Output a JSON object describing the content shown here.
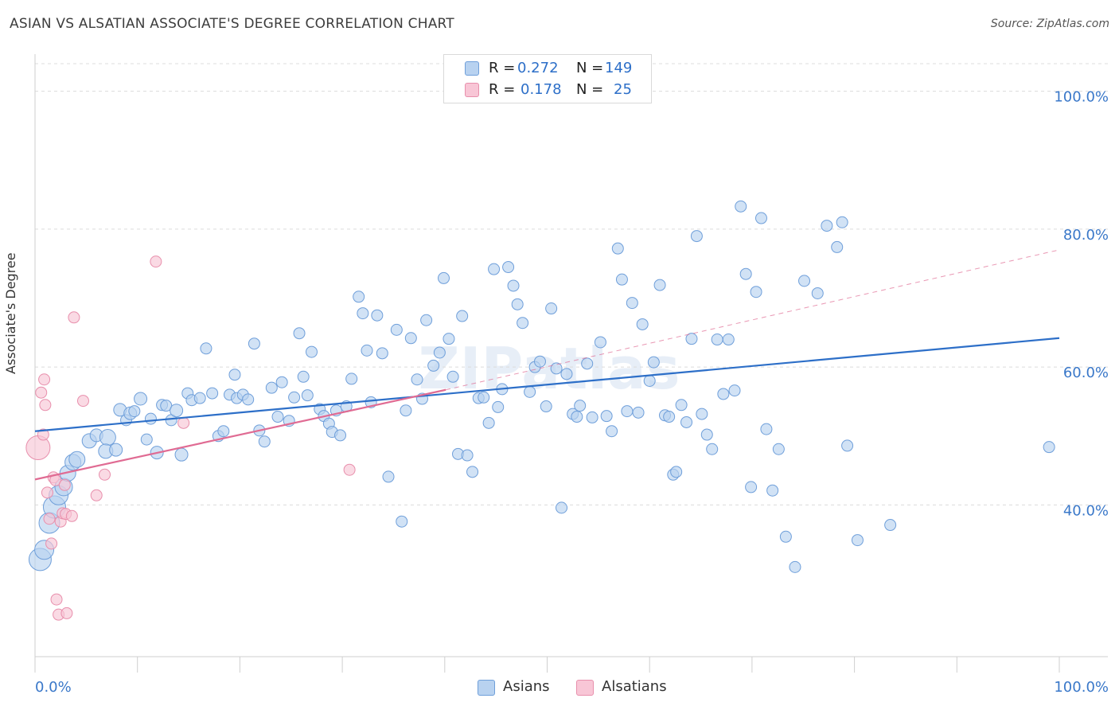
{
  "header": {
    "title": "ASIAN VS ALSATIAN ASSOCIATE'S DEGREE CORRELATION CHART",
    "source": "Source: ZipAtlas.com"
  },
  "stats": {
    "asians": {
      "r_label": "R =",
      "r_value": "0.272",
      "n_label": "N =",
      "n_value": "149"
    },
    "alsatians": {
      "r_label": "R =",
      "r_value": "0.178",
      "n_label": "N =",
      "n_value": "25"
    }
  },
  "colors": {
    "asians_fill": "#b8d2f0",
    "asians_stroke": "#6f9fda",
    "asians_line": "#2d6fc8",
    "alsatians_fill": "#f8c6d6",
    "alsatians_stroke": "#e88fac",
    "alsatians_line": "#e06b93",
    "axis_text": "#3a78c9",
    "grid": "#dcdcdc"
  },
  "chart_data": {
    "type": "scatter",
    "title": "ASIAN VS ALSATIAN ASSOCIATE'S DEGREE CORRELATION CHART",
    "xlabel": "",
    "ylabel": "Associate's Degree",
    "xlim": [
      0,
      100
    ],
    "ylim": [
      18,
      104
    ],
    "x_tick_labels": [
      "0.0%",
      "100.0%"
    ],
    "y_tick_labels": [
      {
        "value": 40,
        "label": "40.0%"
      },
      {
        "value": 60,
        "label": "60.0%"
      },
      {
        "value": 80,
        "label": "80.0%"
      },
      {
        "value": 100,
        "label": "100.0%"
      }
    ],
    "grid": true,
    "legend_position": "bottom-center",
    "watermark": "ZIPatlas",
    "series": [
      {
        "name": "Asians",
        "trend": {
          "x": [
            0,
            100
          ],
          "y": [
            50.7,
            64.2
          ]
        },
        "points": [
          [
            0.5,
            32.1,
            28
          ],
          [
            0.9,
            33.5,
            24
          ],
          [
            1.4,
            37.4,
            26
          ],
          [
            1.9,
            39.7,
            28
          ],
          [
            2.3,
            41.4,
            24
          ],
          [
            2.8,
            42.6,
            22
          ],
          [
            3.2,
            44.6,
            20
          ],
          [
            3.7,
            46.2,
            20
          ],
          [
            4.1,
            46.6,
            20
          ],
          [
            5.3,
            49.3,
            18
          ],
          [
            6.0,
            50.1,
            16
          ],
          [
            7.1,
            49.8,
            20
          ],
          [
            6.9,
            47.8,
            18
          ],
          [
            7.9,
            48.0,
            16
          ],
          [
            8.3,
            53.8,
            16
          ],
          [
            8.9,
            52.3,
            14
          ],
          [
            9.3,
            53.3,
            16
          ],
          [
            9.7,
            53.6,
            14
          ],
          [
            10.3,
            55.4,
            16
          ],
          [
            10.9,
            49.5,
            14
          ],
          [
            11.3,
            52.5,
            14
          ],
          [
            11.9,
            47.6,
            16
          ],
          [
            12.4,
            54.5,
            14
          ],
          [
            12.8,
            54.4,
            14
          ],
          [
            13.3,
            52.3,
            14
          ],
          [
            13.8,
            53.7,
            16
          ],
          [
            14.3,
            47.3,
            16
          ],
          [
            14.9,
            56.2,
            14
          ],
          [
            15.3,
            55.2,
            14
          ],
          [
            16.1,
            55.5,
            14
          ],
          [
            16.7,
            62.7,
            14
          ],
          [
            17.3,
            56.2,
            14
          ],
          [
            17.9,
            50.0,
            14
          ],
          [
            18.4,
            50.7,
            14
          ],
          [
            19.0,
            56.0,
            14
          ],
          [
            19.5,
            58.9,
            14
          ],
          [
            19.7,
            55.5,
            14
          ],
          [
            20.3,
            56.0,
            14
          ],
          [
            20.8,
            55.3,
            14
          ],
          [
            21.4,
            63.4,
            14
          ],
          [
            21.9,
            50.8,
            14
          ],
          [
            22.4,
            49.2,
            14
          ],
          [
            23.1,
            57.0,
            14
          ],
          [
            23.7,
            52.8,
            14
          ],
          [
            24.1,
            57.8,
            14
          ],
          [
            24.8,
            52.2,
            14
          ],
          [
            25.3,
            55.6,
            14
          ],
          [
            25.8,
            64.9,
            14
          ],
          [
            26.2,
            58.6,
            14
          ],
          [
            26.6,
            55.9,
            14
          ],
          [
            27.0,
            62.2,
            14
          ],
          [
            27.8,
            53.9,
            14
          ],
          [
            28.2,
            52.9,
            14
          ],
          [
            28.7,
            51.8,
            14
          ],
          [
            29.0,
            50.6,
            14
          ],
          [
            29.4,
            53.7,
            14
          ],
          [
            29.8,
            50.1,
            14
          ],
          [
            30.4,
            54.3,
            14
          ],
          [
            30.9,
            58.3,
            14
          ],
          [
            31.6,
            70.2,
            14
          ],
          [
            32.0,
            67.8,
            14
          ],
          [
            32.4,
            62.4,
            14
          ],
          [
            32.8,
            54.9,
            14
          ],
          [
            33.4,
            67.5,
            14
          ],
          [
            33.9,
            62.0,
            14
          ],
          [
            34.5,
            44.1,
            14
          ],
          [
            35.3,
            65.4,
            14
          ],
          [
            35.8,
            37.6,
            14
          ],
          [
            36.2,
            53.7,
            14
          ],
          [
            36.7,
            64.2,
            14
          ],
          [
            37.3,
            58.2,
            14
          ],
          [
            37.8,
            55.4,
            14
          ],
          [
            38.2,
            66.8,
            14
          ],
          [
            38.9,
            60.2,
            14
          ],
          [
            39.5,
            62.1,
            14
          ],
          [
            39.9,
            72.9,
            14
          ],
          [
            40.4,
            64.1,
            14
          ],
          [
            40.8,
            58.6,
            14
          ],
          [
            41.3,
            47.4,
            14
          ],
          [
            41.7,
            67.4,
            14
          ],
          [
            42.2,
            47.2,
            14
          ],
          [
            42.7,
            44.8,
            14
          ],
          [
            43.3,
            55.5,
            14
          ],
          [
            43.8,
            55.6,
            14
          ],
          [
            44.3,
            51.9,
            14
          ],
          [
            44.8,
            74.2,
            14
          ],
          [
            45.2,
            54.2,
            14
          ],
          [
            45.6,
            56.8,
            14
          ],
          [
            46.2,
            74.5,
            14
          ],
          [
            46.7,
            71.8,
            14
          ],
          [
            47.1,
            69.1,
            14
          ],
          [
            47.6,
            66.4,
            14
          ],
          [
            48.3,
            56.4,
            14
          ],
          [
            48.8,
            60.0,
            14
          ],
          [
            49.3,
            60.8,
            14
          ],
          [
            49.9,
            54.3,
            14
          ],
          [
            50.4,
            68.5,
            14
          ],
          [
            50.9,
            59.8,
            14
          ],
          [
            51.4,
            39.6,
            14
          ],
          [
            51.9,
            59.0,
            14
          ],
          [
            52.5,
            53.2,
            14
          ],
          [
            52.9,
            52.8,
            14
          ],
          [
            53.2,
            54.4,
            14
          ],
          [
            53.9,
            60.5,
            14
          ],
          [
            54.4,
            52.7,
            14
          ],
          [
            55.2,
            63.6,
            14
          ],
          [
            55.8,
            52.9,
            14
          ],
          [
            56.3,
            50.7,
            14
          ],
          [
            56.9,
            77.2,
            14
          ],
          [
            57.3,
            72.7,
            14
          ],
          [
            57.8,
            53.6,
            14
          ],
          [
            58.3,
            69.3,
            14
          ],
          [
            58.9,
            53.4,
            14
          ],
          [
            59.3,
            66.2,
            14
          ],
          [
            60.0,
            58.0,
            14
          ],
          [
            60.4,
            60.7,
            14
          ],
          [
            61.0,
            71.9,
            14
          ],
          [
            61.5,
            53.0,
            14
          ],
          [
            61.9,
            52.8,
            14
          ],
          [
            62.3,
            44.4,
            14
          ],
          [
            62.6,
            44.8,
            14
          ],
          [
            63.1,
            54.5,
            14
          ],
          [
            63.6,
            52.0,
            14
          ],
          [
            64.1,
            64.1,
            14
          ],
          [
            64.6,
            79.0,
            14
          ],
          [
            65.1,
            53.2,
            14
          ],
          [
            65.6,
            50.2,
            14
          ],
          [
            66.1,
            48.1,
            14
          ],
          [
            66.6,
            64.0,
            14
          ],
          [
            67.2,
            56.1,
            14
          ],
          [
            67.7,
            64.0,
            14
          ],
          [
            68.3,
            56.6,
            14
          ],
          [
            68.9,
            83.3,
            14
          ],
          [
            69.4,
            73.5,
            14
          ],
          [
            69.9,
            42.6,
            14
          ],
          [
            70.4,
            70.9,
            14
          ],
          [
            70.9,
            81.6,
            14
          ],
          [
            71.4,
            51.0,
            14
          ],
          [
            72.0,
            42.1,
            14
          ],
          [
            72.6,
            48.1,
            14
          ],
          [
            73.3,
            35.4,
            14
          ],
          [
            74.2,
            31.0,
            14
          ],
          [
            75.1,
            72.5,
            14
          ],
          [
            76.4,
            70.7,
            14
          ],
          [
            77.3,
            80.5,
            14
          ],
          [
            78.3,
            77.4,
            14
          ],
          [
            78.8,
            81.0,
            14
          ],
          [
            79.3,
            48.6,
            14
          ],
          [
            80.3,
            34.9,
            14
          ],
          [
            83.5,
            37.1,
            14
          ],
          [
            99.0,
            48.4,
            14
          ]
        ]
      },
      {
        "name": "Alsatians",
        "trend": {
          "x": [
            0,
            40.1
          ],
          "y": [
            43.7,
            56.7
          ]
        },
        "dashed_extension": {
          "x": [
            40.1,
            100
          ],
          "y": [
            56.7,
            77.0
          ]
        },
        "points": [
          [
            0.3,
            48.3,
            30
          ],
          [
            0.6,
            56.3,
            14
          ],
          [
            0.8,
            50.2,
            14
          ],
          [
            0.9,
            58.2,
            14
          ],
          [
            1.0,
            54.5,
            14
          ],
          [
            1.2,
            41.8,
            14
          ],
          [
            1.4,
            38.0,
            14
          ],
          [
            1.6,
            34.4,
            14
          ],
          [
            1.8,
            44.0,
            14
          ],
          [
            2.0,
            43.6,
            14
          ],
          [
            2.1,
            26.3,
            14
          ],
          [
            2.3,
            24.1,
            14
          ],
          [
            2.5,
            37.6,
            14
          ],
          [
            2.7,
            38.8,
            14
          ],
          [
            2.9,
            42.9,
            14
          ],
          [
            3.0,
            38.7,
            14
          ],
          [
            3.1,
            24.3,
            14
          ],
          [
            3.6,
            38.4,
            14
          ],
          [
            3.8,
            67.2,
            14
          ],
          [
            4.7,
            55.1,
            14
          ],
          [
            6.0,
            41.4,
            14
          ],
          [
            6.8,
            44.4,
            14
          ],
          [
            11.8,
            75.3,
            14
          ],
          [
            14.5,
            51.9,
            14
          ],
          [
            30.7,
            45.1,
            14
          ]
        ]
      }
    ]
  },
  "legend": {
    "asians_label": "Asians",
    "alsatians_label": "Alsatians"
  }
}
